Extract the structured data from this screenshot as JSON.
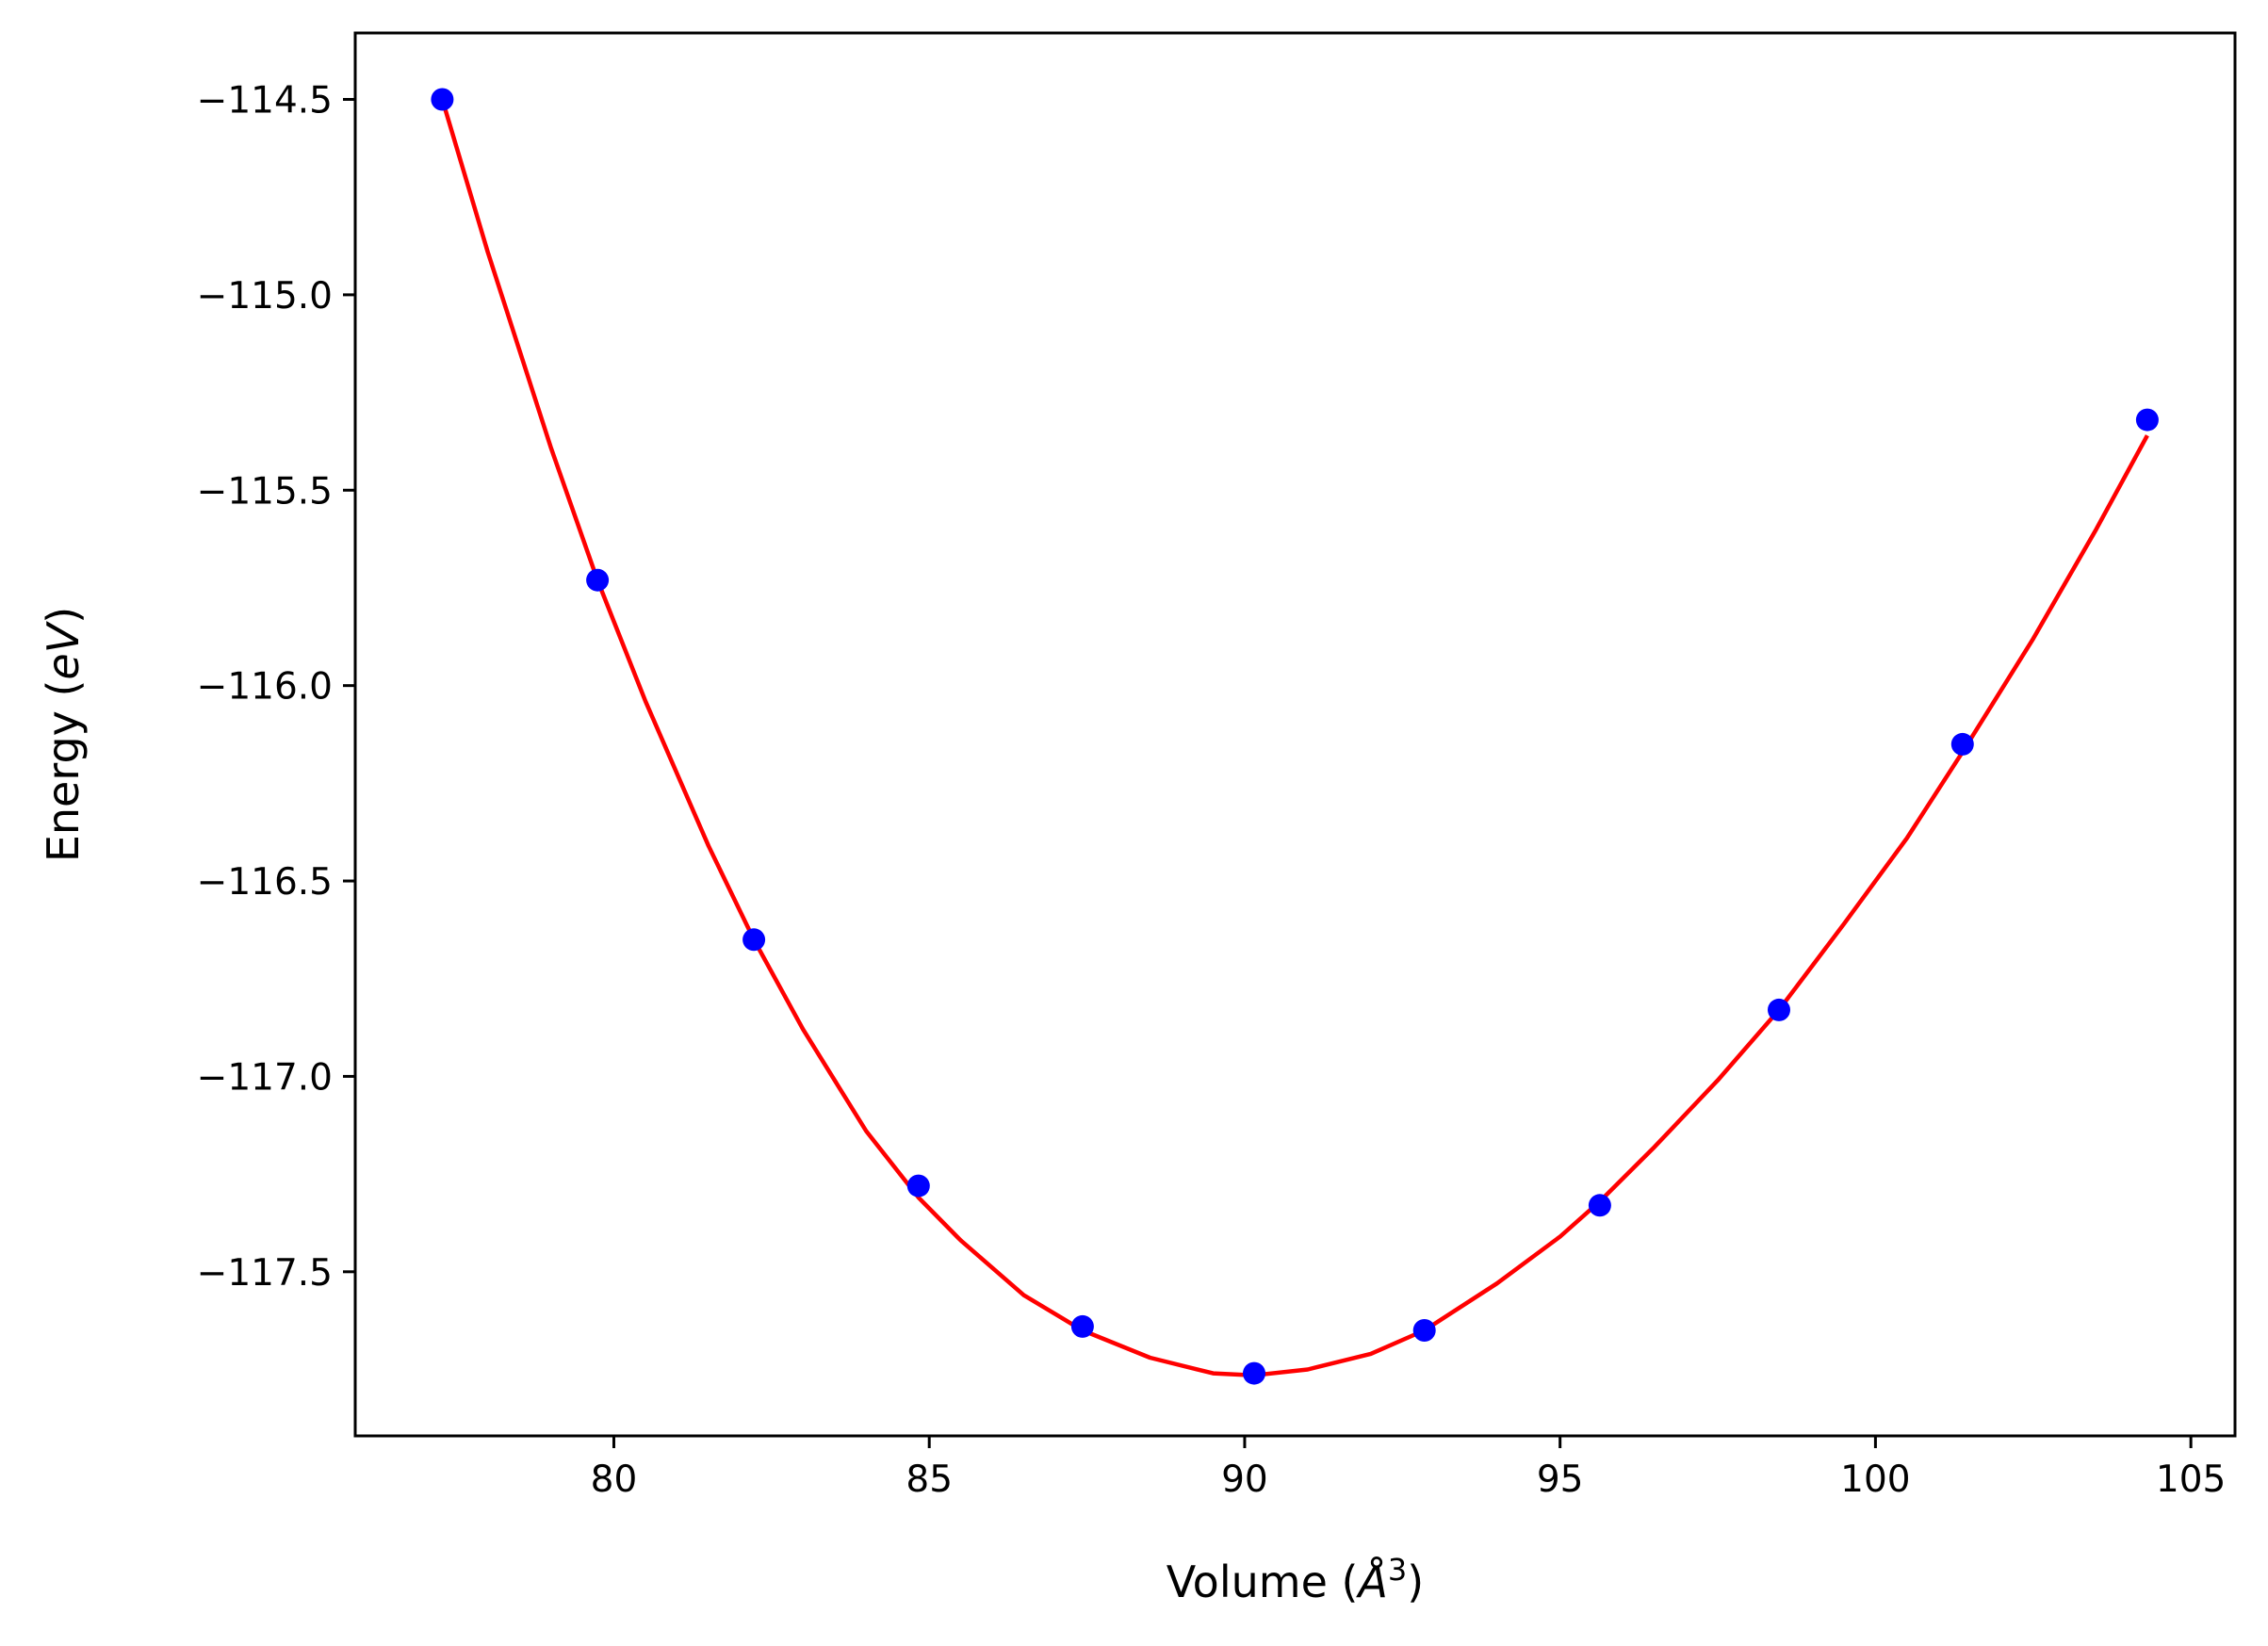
{
  "chart_data": {
    "type": "scatter",
    "xlabel": "Volume (Å³)",
    "xlabel_parts": {
      "prefix": "Volume (",
      "italic": "Å",
      "sup": "3",
      "suffix": ")"
    },
    "ylabel": "Energy (eV)",
    "ylabel_parts": {
      "prefix": "Energy (",
      "italic": "eV",
      "suffix": ")"
    },
    "xlim": [
      75.9,
      105.7
    ],
    "ylim": [
      -117.92,
      -114.33
    ],
    "x_ticks": [
      80,
      85,
      90,
      95,
      100,
      105
    ],
    "x_tick_labels": [
      "80",
      "85",
      "90",
      "95",
      "100",
      "105"
    ],
    "y_ticks": [
      -114.5,
      -115.0,
      -115.5,
      -116.0,
      -116.5,
      -117.0,
      -117.5
    ],
    "y_tick_labels": [
      "−114.5",
      "−115.0",
      "−115.5",
      "−116.0",
      "−116.5",
      "−117.0",
      "−117.5"
    ],
    "grid": false,
    "series": [
      {
        "kind": "points",
        "color": "#0000ff",
        "x": [
          77.28,
          79.74,
          82.22,
          84.83,
          87.43,
          90.15,
          92.85,
          95.63,
          98.47,
          101.38,
          104.31
        ],
        "y": [
          -114.5,
          -115.73,
          -116.65,
          -117.28,
          -117.64,
          -117.76,
          -117.65,
          -117.33,
          -116.83,
          -116.15,
          -115.32
        ]
      },
      {
        "kind": "fit-curve",
        "color": "#ff0000",
        "x": [
          77.28,
          78.0,
          79.0,
          79.74,
          80.5,
          81.5,
          82.22,
          83.0,
          84.0,
          84.83,
          85.5,
          86.5,
          87.43,
          88.5,
          89.5,
          90.15,
          91.0,
          92.0,
          92.85,
          94.0,
          95.0,
          95.63,
          96.5,
          97.5,
          98.47,
          99.5,
          100.5,
          101.38,
          102.5,
          103.5,
          104.31
        ],
        "y": [
          -114.5,
          -114.89,
          -115.39,
          -115.73,
          -116.04,
          -116.41,
          -116.65,
          -116.88,
          -117.14,
          -117.31,
          -117.42,
          -117.56,
          -117.65,
          -117.72,
          -117.76,
          -117.765,
          -117.75,
          -117.71,
          -117.65,
          -117.53,
          -117.41,
          -117.32,
          -117.18,
          -117.01,
          -116.83,
          -116.61,
          -116.39,
          -116.17,
          -115.88,
          -115.6,
          -115.36
        ]
      }
    ]
  }
}
